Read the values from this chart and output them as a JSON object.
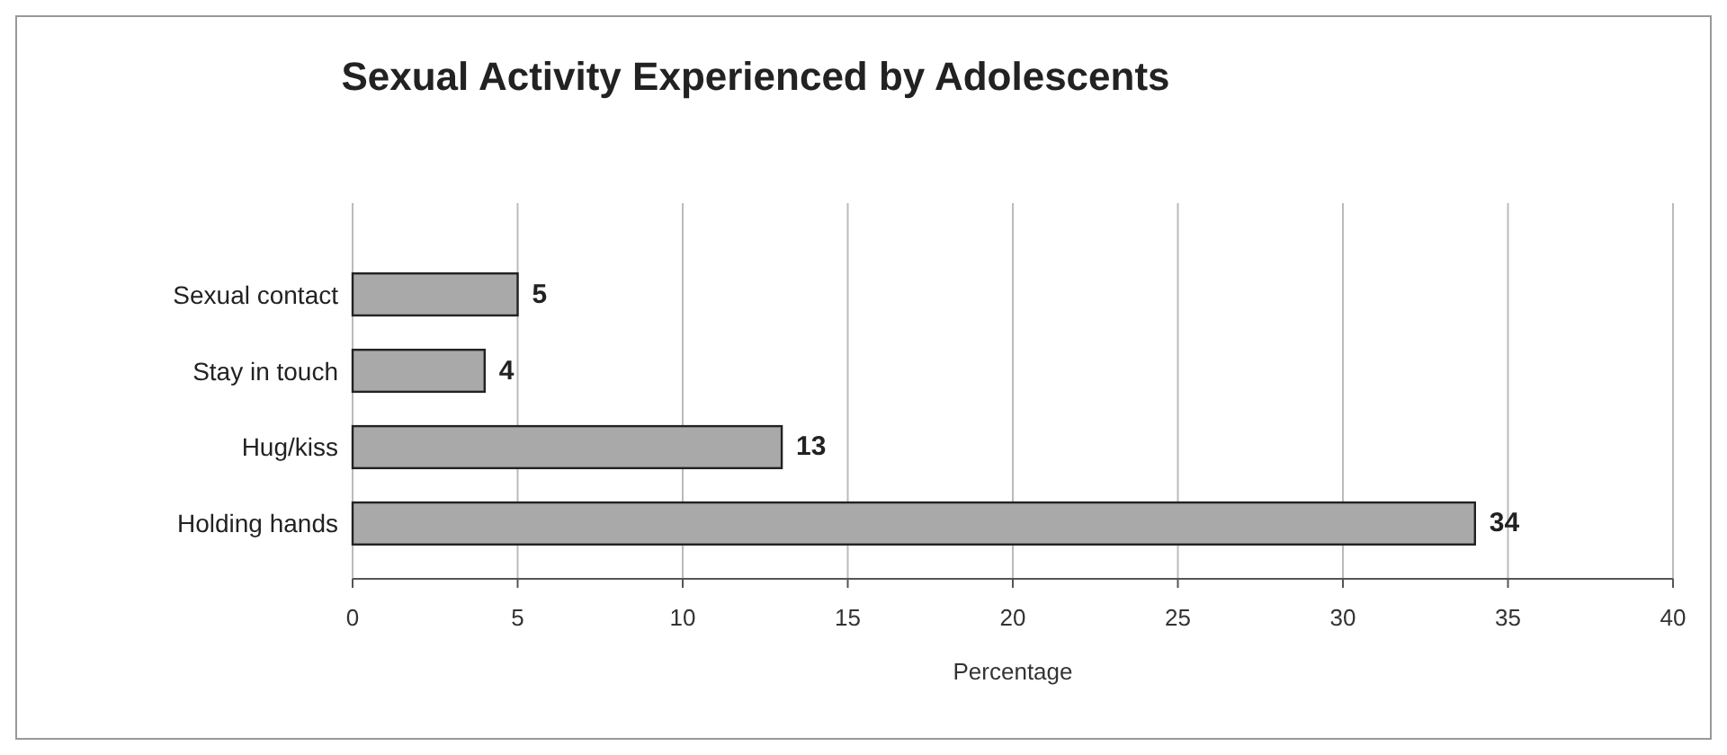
{
  "chart_data": {
    "type": "bar",
    "orientation": "horizontal",
    "title": "Sexual Activity Experienced by Adolescents",
    "xlabel": "Percentage",
    "categories": [
      "Sexual contact",
      "Stay in touch",
      "Hug/kiss",
      "Holding hands"
    ],
    "values": [
      5,
      4,
      13,
      34
    ],
    "color": "#a9a9a9",
    "xlim": [
      0,
      40
    ],
    "xticks": [
      0,
      5,
      10,
      15,
      20,
      25,
      30,
      35,
      40
    ],
    "grid": "x",
    "data_labels": true
  }
}
